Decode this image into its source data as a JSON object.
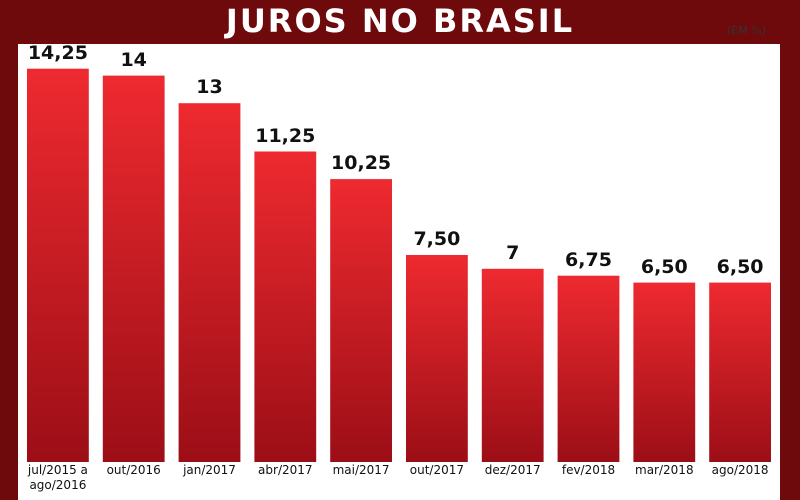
{
  "chart_data": {
    "type": "bar",
    "title": "JUROS NO BRASIL",
    "subtitle": "(EM %)",
    "categories": [
      "jul/2015 a ago/2016",
      "out/2016",
      "jan/2017",
      "abr/2017",
      "mai/2017",
      "out/2017",
      "dez/2017",
      "fev/2018",
      "mar/2018",
      "ago/2018"
    ],
    "values": [
      14.25,
      14,
      13,
      11.25,
      10.25,
      7.5,
      7,
      6.75,
      6.5,
      6.5
    ],
    "value_labels": [
      "14,25",
      "14",
      "13",
      "11,25",
      "10,25",
      "7,50",
      "7",
      "6,75",
      "6,50",
      "6,50"
    ],
    "color": "#d81820"
  }
}
